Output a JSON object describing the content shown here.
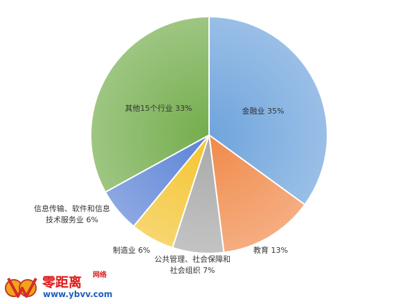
{
  "chart_data": {
    "type": "pie",
    "slices": [
      {
        "label_lines": [
          "金融业 35%"
        ],
        "value": 35,
        "color": "#6fa4dc"
      },
      {
        "label_lines": [
          "教育 13%"
        ],
        "value": 13,
        "color": "#f08a4a"
      },
      {
        "label_lines": [
          "公共管理、社会保障和",
          "社会组织 7%"
        ],
        "value": 7,
        "color": "#a9a9a9"
      },
      {
        "label_lines": [
          "制造业 6%"
        ],
        "value": 6,
        "color": "#f4c430"
      },
      {
        "label_lines": [
          "信息传输、软件和信息",
          "技术服务业 6%"
        ],
        "value": 6,
        "color": "#5b83d6"
      },
      {
        "label_lines": [
          "其他15个行业 33%"
        ],
        "value": 33,
        "color": "#74ad4d"
      }
    ]
  },
  "watermark": {
    "name": "零距离",
    "sub": "网络",
    "url": "www.ybvv.com"
  }
}
